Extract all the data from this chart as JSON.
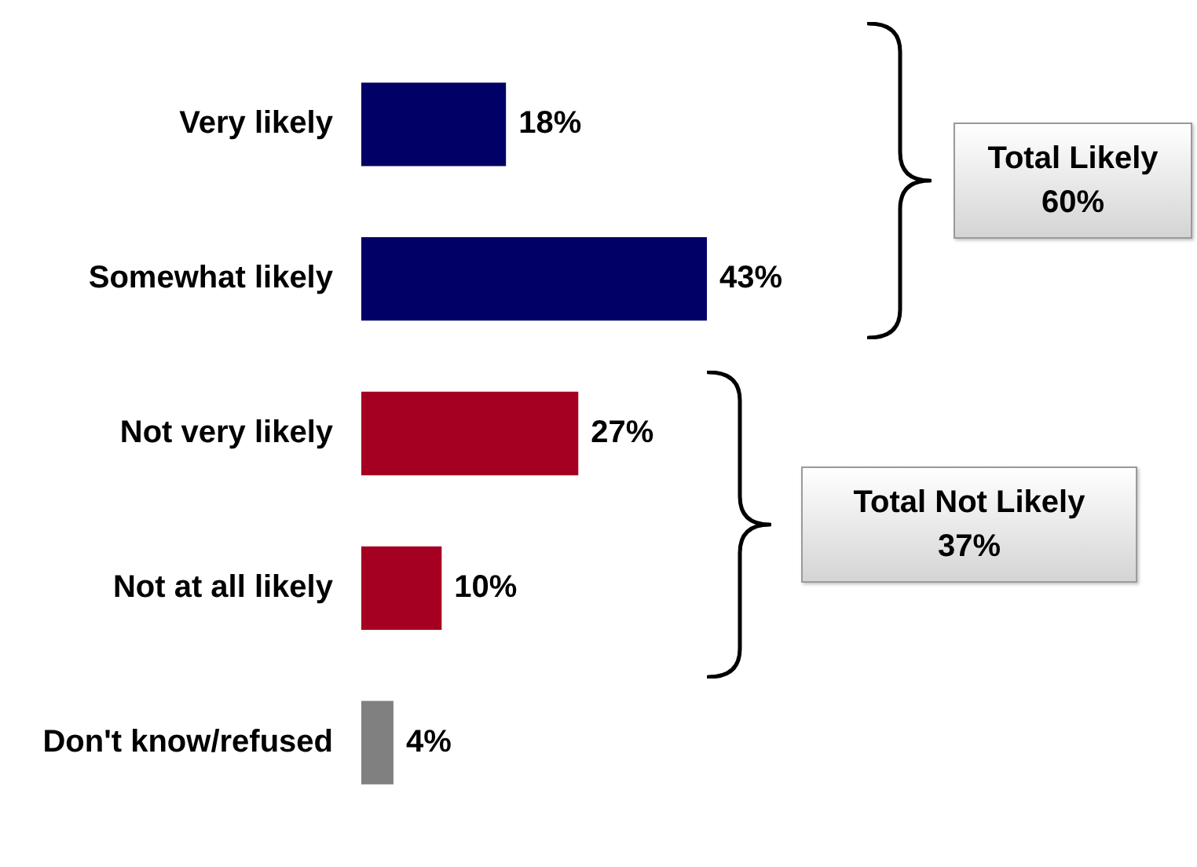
{
  "chart_data": {
    "type": "bar",
    "orientation": "horizontal",
    "categories": [
      "Very likely",
      "Somewhat likely",
      "Not very likely",
      "Not at all likely",
      "Don't know/refused"
    ],
    "values": [
      18,
      43,
      27,
      10,
      4
    ],
    "colors": [
      "#000066",
      "#000066",
      "#a50021",
      "#a50021",
      "#808080"
    ],
    "value_labels": [
      "18%",
      "43%",
      "27%",
      "10%",
      "4%"
    ],
    "tick_labels": "y",
    "legend": false,
    "annotations": [
      "Total Likely\n60%",
      "Total Not Likely\n37%"
    ]
  }
}
